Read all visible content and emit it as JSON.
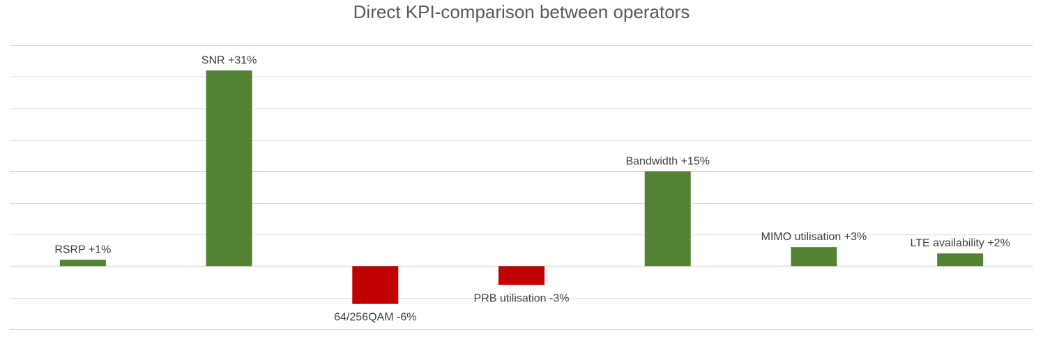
{
  "chart_data": {
    "type": "bar",
    "title": "Direct KPI-comparison between operators",
    "xlabel": "",
    "ylabel": "",
    "ylim": [
      -10,
      35
    ],
    "grid": true,
    "gridStep": 5,
    "categories": [
      "RSRP",
      "SNR",
      "64/256QAM",
      "PRB utilisation",
      "Bandwidth",
      "MIMO utilisation",
      "LTE availability"
    ],
    "values": [
      1,
      31,
      -6,
      -3,
      15,
      3,
      2
    ],
    "data_labels": [
      "RSRP +1%",
      "SNR +31%",
      "64/256QAM -6%",
      "PRB utilisation -3%",
      "Bandwidth +15%",
      "MIMO utilisation +3%",
      "LTE availability +2%"
    ],
    "colors": {
      "positive": "#548235",
      "negative": "#C00000",
      "grid": "#d9d9d9",
      "label": "#404040"
    }
  }
}
